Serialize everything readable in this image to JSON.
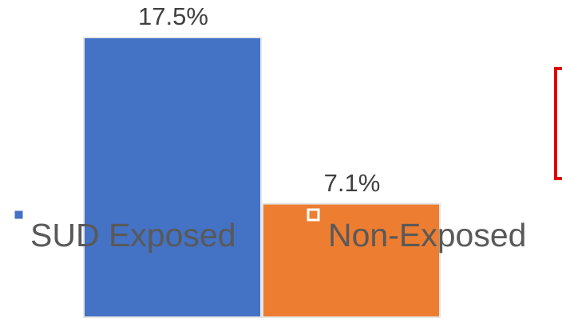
{
  "chart_data": {
    "type": "bar",
    "series": [
      {
        "name": "SUD Exposed",
        "color": "#4472c4",
        "values": [
          17.5
        ],
        "value_labels": [
          "17.5%"
        ]
      },
      {
        "name": "Non-Exposed",
        "color": "#ed7d31",
        "values": [
          7.1
        ],
        "value_labels": [
          "7.1%"
        ]
      }
    ],
    "ylim": [
      0,
      17.5
    ]
  }
}
